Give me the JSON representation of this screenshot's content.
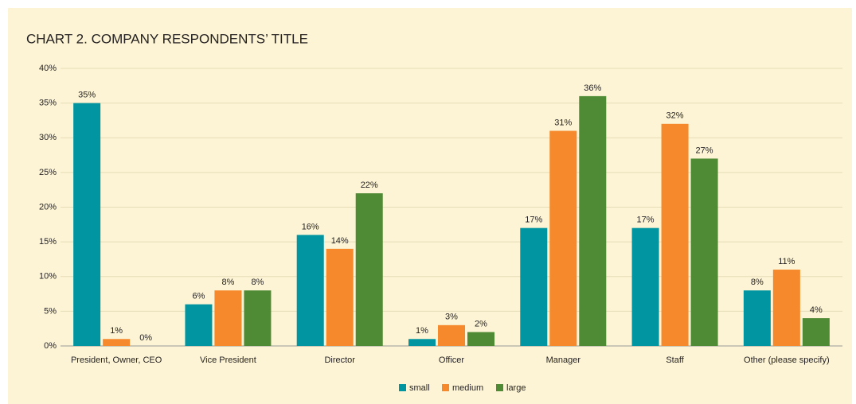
{
  "chart_data": {
    "type": "bar",
    "title": "CHART 2. COMPANY RESPONDENTS’ TITLE",
    "categories": [
      "President, Owner, CEO",
      "Vice President",
      "Director",
      "Officer",
      "Manager",
      "Staff",
      "Other (please specify)"
    ],
    "series": [
      {
        "name": "small",
        "color": "#0095a0",
        "values": [
          35,
          6,
          16,
          1,
          17,
          17,
          8
        ],
        "value_labels": [
          "35%",
          "6%",
          "16%",
          "1%",
          "17%",
          "17%",
          "8%"
        ]
      },
      {
        "name": "medium",
        "color": "#f5892b",
        "values": [
          1,
          8,
          14,
          3,
          31,
          32,
          11
        ],
        "value_labels": [
          "1%",
          "8%",
          "14%",
          "3%",
          "31%",
          "32%",
          "11%"
        ]
      },
      {
        "name": "large",
        "color": "#4f8a34",
        "values": [
          0,
          8,
          22,
          2,
          36,
          27,
          4
        ],
        "value_labels": [
          "0%",
          "8%",
          "22%",
          "2%",
          "36%",
          "27%",
          "4%"
        ]
      }
    ],
    "ylim": [
      0,
      40
    ],
    "yticks": [
      {
        "value": 0,
        "label": "0%"
      },
      {
        "value": 5,
        "label": "5%"
      },
      {
        "value": 10,
        "label": "10%"
      },
      {
        "value": 15,
        "label": "15%"
      },
      {
        "value": 20,
        "label": "20%"
      },
      {
        "value": 25,
        "label": "25%"
      },
      {
        "value": 30,
        "label": "30%"
      },
      {
        "value": 35,
        "label": "35%"
      },
      {
        "value": 40,
        "label": "40%"
      }
    ],
    "grid": true,
    "legend": "bottom"
  }
}
